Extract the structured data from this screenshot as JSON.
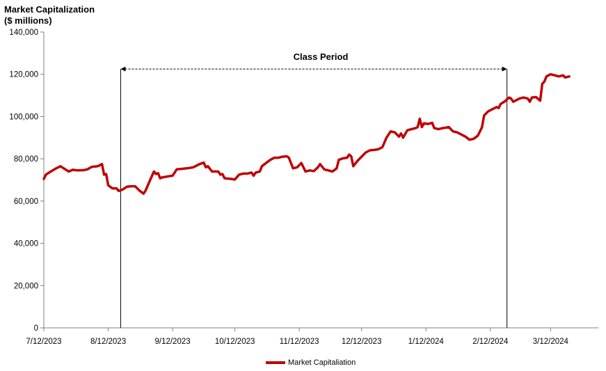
{
  "chart_data": {
    "type": "line",
    "title": "",
    "ylabel_line1": "Market Capitalization",
    "ylabel_line2": "($ millions)",
    "xlabel": "",
    "ylim": [
      0,
      140000
    ],
    "yticks": [
      "0",
      "20,000",
      "40,000",
      "60,000",
      "80,000",
      "100,000",
      "120,000",
      "140,000"
    ],
    "xticks": [
      "7/12/2023",
      "8/12/2023",
      "9/12/2023",
      "10/12/2023",
      "11/12/2023",
      "12/12/2023",
      "1/12/2024",
      "2/12/2024",
      "3/12/2024"
    ],
    "xrange": [
      "2023-07-12",
      "2024-04-04"
    ],
    "grid": false,
    "legend_position": "bottom",
    "annotation": {
      "label": "Class Period",
      "start": "2023-08-18",
      "end": "2024-02-20"
    },
    "series": [
      {
        "name": "Market Capitaliation",
        "color": "#c00000",
        "points": [
          [
            "2023-07-12",
            70500
          ],
          [
            "2023-07-13",
            72500
          ],
          [
            "2023-07-15",
            73800
          ],
          [
            "2023-07-18",
            75500
          ],
          [
            "2023-07-20",
            76500
          ],
          [
            "2023-07-22",
            75200
          ],
          [
            "2023-07-24",
            74000
          ],
          [
            "2023-07-26",
            74800
          ],
          [
            "2023-07-28",
            74500
          ],
          [
            "2023-07-31",
            74600
          ],
          [
            "2023-08-02",
            75000
          ],
          [
            "2023-08-04",
            76200
          ],
          [
            "2023-08-07",
            76500
          ],
          [
            "2023-08-09",
            77500
          ],
          [
            "2023-08-10",
            72500
          ],
          [
            "2023-08-11",
            72800
          ],
          [
            "2023-08-12",
            67500
          ],
          [
            "2023-08-14",
            66000
          ],
          [
            "2023-08-16",
            66000
          ],
          [
            "2023-08-17",
            64800
          ],
          [
            "2023-08-19",
            65500
          ],
          [
            "2023-08-21",
            66800
          ],
          [
            "2023-08-23",
            67000
          ],
          [
            "2023-08-25",
            67000
          ],
          [
            "2023-08-27",
            65000
          ],
          [
            "2023-08-29",
            63500
          ],
          [
            "2023-08-30",
            65000
          ],
          [
            "2023-09-01",
            69500
          ],
          [
            "2023-09-03",
            74000
          ],
          [
            "2023-09-04",
            72800
          ],
          [
            "2023-09-05",
            73200
          ],
          [
            "2023-09-06",
            70800
          ],
          [
            "2023-09-07",
            71200
          ],
          [
            "2023-09-10",
            71700
          ],
          [
            "2023-09-12",
            72000
          ],
          [
            "2023-09-14",
            75000
          ],
          [
            "2023-09-16",
            75200
          ],
          [
            "2023-09-19",
            75500
          ],
          [
            "2023-09-22",
            76000
          ],
          [
            "2023-09-25",
            77500
          ],
          [
            "2023-09-27",
            78200
          ],
          [
            "2023-09-28",
            76000
          ],
          [
            "2023-09-29",
            76500
          ],
          [
            "2023-10-01",
            74000
          ],
          [
            "2023-10-04",
            74000
          ],
          [
            "2023-10-05",
            72500
          ],
          [
            "2023-10-06",
            72800
          ],
          [
            "2023-10-07",
            70800
          ],
          [
            "2023-10-10",
            70500
          ],
          [
            "2023-10-12",
            70200
          ],
          [
            "2023-10-14",
            72500
          ],
          [
            "2023-10-16",
            73000
          ],
          [
            "2023-10-18",
            73000
          ],
          [
            "2023-10-20",
            73500
          ],
          [
            "2023-10-21",
            72000
          ],
          [
            "2023-10-22",
            73500
          ],
          [
            "2023-10-24",
            74000
          ],
          [
            "2023-10-25",
            76500
          ],
          [
            "2023-10-27",
            78000
          ],
          [
            "2023-10-29",
            79500
          ],
          [
            "2023-10-31",
            80500
          ],
          [
            "2023-11-02",
            80500
          ],
          [
            "2023-11-04",
            81000
          ],
          [
            "2023-11-06",
            81200
          ],
          [
            "2023-11-07",
            80500
          ],
          [
            "2023-11-09",
            75500
          ],
          [
            "2023-11-11",
            76000
          ],
          [
            "2023-11-13",
            78000
          ],
          [
            "2023-11-15",
            74000
          ],
          [
            "2023-11-17",
            74500
          ],
          [
            "2023-11-19",
            74200
          ],
          [
            "2023-11-21",
            76000
          ],
          [
            "2023-11-22",
            77500
          ],
          [
            "2023-11-24",
            75000
          ],
          [
            "2023-11-26",
            74500
          ],
          [
            "2023-11-28",
            74000
          ],
          [
            "2023-11-30",
            75500
          ],
          [
            "2023-12-01",
            79500
          ],
          [
            "2023-12-03",
            80200
          ],
          [
            "2023-12-05",
            80500
          ],
          [
            "2023-12-06",
            82000
          ],
          [
            "2023-12-07",
            81200
          ],
          [
            "2023-12-08",
            76500
          ],
          [
            "2023-12-10",
            79000
          ],
          [
            "2023-12-12",
            81000
          ],
          [
            "2023-12-14",
            83000
          ],
          [
            "2023-12-16",
            84000
          ],
          [
            "2023-12-18",
            84200
          ],
          [
            "2023-12-20",
            84500
          ],
          [
            "2023-12-22",
            85500
          ],
          [
            "2023-12-24",
            90000
          ],
          [
            "2023-12-26",
            93000
          ],
          [
            "2023-12-28",
            92500
          ],
          [
            "2023-12-30",
            90500
          ],
          [
            "2023-12-31",
            92000
          ],
          [
            "2024-01-01",
            90000
          ],
          [
            "2024-01-03",
            93500
          ],
          [
            "2024-01-05",
            94000
          ],
          [
            "2024-01-07",
            94500
          ],
          [
            "2024-01-08",
            95000
          ],
          [
            "2024-01-09",
            99000
          ],
          [
            "2024-01-10",
            95000
          ],
          [
            "2024-01-11",
            96800
          ],
          [
            "2024-01-13",
            96500
          ],
          [
            "2024-01-15",
            97000
          ],
          [
            "2024-01-16",
            94500
          ],
          [
            "2024-01-18",
            94000
          ],
          [
            "2024-01-20",
            94500
          ],
          [
            "2024-01-23",
            95000
          ],
          [
            "2024-01-25",
            93000
          ],
          [
            "2024-01-27",
            92500
          ],
          [
            "2024-01-29",
            91500
          ],
          [
            "2024-01-31",
            90500
          ],
          [
            "2024-02-02",
            89000
          ],
          [
            "2024-02-04",
            89500
          ],
          [
            "2024-02-06",
            91000
          ],
          [
            "2024-02-08",
            95000
          ],
          [
            "2024-02-09",
            100500
          ],
          [
            "2024-02-11",
            102500
          ],
          [
            "2024-02-13",
            103500
          ],
          [
            "2024-02-15",
            104500
          ],
          [
            "2024-02-16",
            104000
          ],
          [
            "2024-02-17",
            106000
          ],
          [
            "2024-02-19",
            107200
          ],
          [
            "2024-02-21",
            109000
          ],
          [
            "2024-02-22",
            108500
          ],
          [
            "2024-02-23",
            107000
          ],
          [
            "2024-02-24",
            107500
          ],
          [
            "2024-02-26",
            108500
          ],
          [
            "2024-02-28",
            109000
          ],
          [
            "2024-03-01",
            108500
          ],
          [
            "2024-03-02",
            107000
          ],
          [
            "2024-03-03",
            109000
          ],
          [
            "2024-03-05",
            109200
          ],
          [
            "2024-03-07",
            107500
          ],
          [
            "2024-03-08",
            115500
          ],
          [
            "2024-03-09",
            116500
          ],
          [
            "2024-03-10",
            119000
          ],
          [
            "2024-03-12",
            120000
          ],
          [
            "2024-03-14",
            119500
          ],
          [
            "2024-03-16",
            119000
          ],
          [
            "2024-03-18",
            119500
          ],
          [
            "2024-03-19",
            118500
          ],
          [
            "2024-03-21",
            119000
          ]
        ]
      }
    ]
  },
  "legend": {
    "label": "Market Capitaliation"
  }
}
